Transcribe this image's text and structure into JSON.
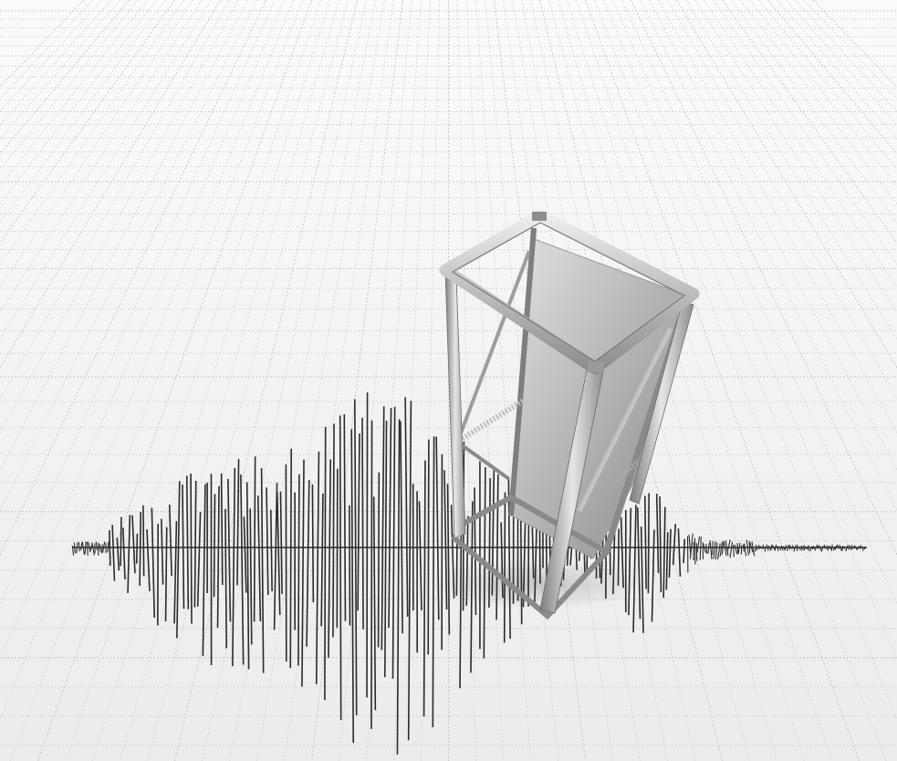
{
  "scene": {
    "subject": "server-rack-frame",
    "background": "graph-paper-grid",
    "signal": "seismogram-trace"
  },
  "colors": {
    "paper": "#f4f4f4",
    "grid_minor": "#d2d2d2",
    "grid_major": "#bdbdbd",
    "trace": "#2b2b2b",
    "metal_light": "#e3e3e3",
    "metal_mid": "#a9a9a9",
    "metal_dark": "#6f6f6f",
    "panel_light": "#d9d9d9",
    "panel_dark": "#8c8c8c"
  }
}
